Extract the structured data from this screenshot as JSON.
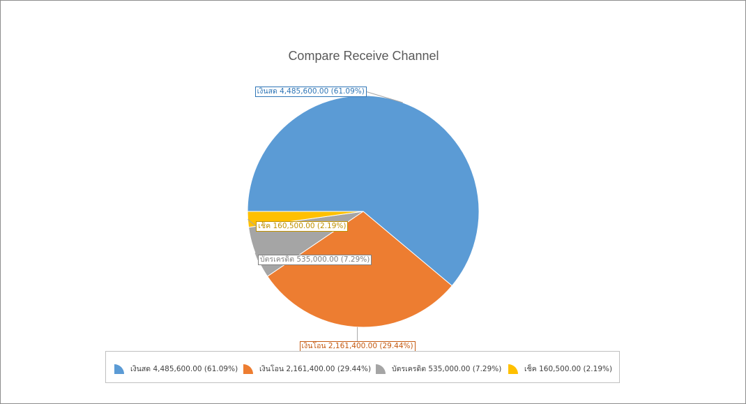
{
  "chart_data": {
    "type": "pie",
    "title": "Compare Receive Channel",
    "slices": [
      {
        "name": "เงินสด",
        "value": 4485600.0,
        "value_text": "4,485,600.00",
        "percent_text": "61.09%",
        "color": "#5b9bd5"
      },
      {
        "name": "เงินโอน",
        "value": 2161400.0,
        "value_text": "2,161,400.00",
        "percent_text": "29.44%",
        "color": "#ed7d31"
      },
      {
        "name": "บัตรเครดิต",
        "value": 535000.0,
        "value_text": "535,000.00",
        "percent_text": "7.29%",
        "color": "#a5a5a5"
      },
      {
        "name": "เช็ค",
        "value": 160500.0,
        "value_text": "160,500.00",
        "percent_text": "2.19%",
        "color": "#ffc000"
      }
    ],
    "legend_position": "bottom",
    "label_colors": {
      "เงินสด": "#2e75b6",
      "เงินโอน": "#c55a11",
      "บัตรเครดิต": "#7f7f7f",
      "เช็ค": "#bf9000"
    }
  },
  "labels": {
    "slice_0": "เงินสด 4,485,600.00 (61.09%)",
    "slice_1": "เงินโอน 2,161,400.00 (29.44%)",
    "slice_2": "บัตรเครดิต 535,000.00 (7.29%)",
    "slice_3": "เช็ค 160,500.00 (2.19%)"
  },
  "legend": {
    "items": [
      {
        "label": "เงินสด 4,485,600.00 (61.09%)",
        "color": "#5b9bd5"
      },
      {
        "label": "เงินโอน 2,161,400.00 (29.44%)",
        "color": "#ed7d31"
      },
      {
        "label": "บัตรเครดิต 535,000.00 (7.29%)",
        "color": "#a5a5a5"
      },
      {
        "label": "เช็ค 160,500.00 (2.19%)",
        "color": "#ffc000"
      }
    ]
  }
}
